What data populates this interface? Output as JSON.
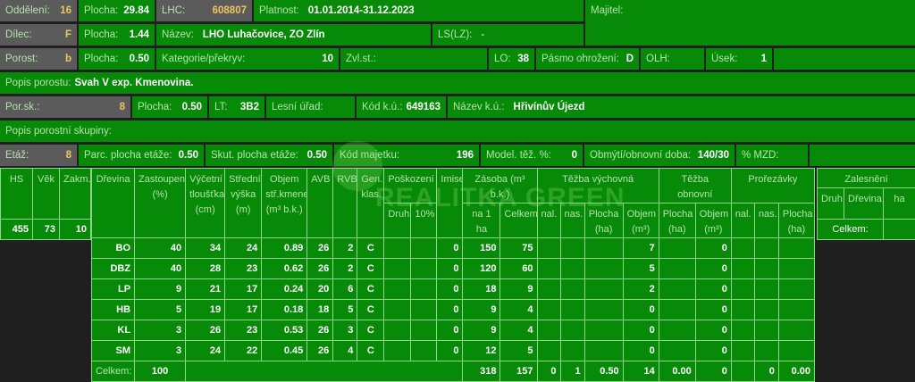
{
  "fields": {
    "oddeleni": {
      "label": "Oddělení:",
      "value": "16"
    },
    "plocha1": {
      "label": "Plocha:",
      "value": "29.84"
    },
    "lhc": {
      "label": "LHC:",
      "value": "608807"
    },
    "platnost": {
      "label": "Platnost:",
      "value": "01.01.2014-31.12.2023"
    },
    "majitel": {
      "label": "Majitel:",
      "value": ""
    },
    "dilec": {
      "label": "Dílec:",
      "value": "F"
    },
    "plocha2": {
      "label": "Plocha:",
      "value": "1.44"
    },
    "nazev": {
      "label": "Název:",
      "value": "LHO Luhačovice, ZO Zlín"
    },
    "ls": {
      "label": "LS(LZ):",
      "value": "-"
    },
    "porost": {
      "label": "Porost:",
      "value": "b"
    },
    "plocha3": {
      "label": "Plocha:",
      "value": "0.50"
    },
    "kategorie": {
      "label": "Kategorie/překryv:",
      "value": "10"
    },
    "zvlst": {
      "label": "Zvl.st.:",
      "value": ""
    },
    "lo": {
      "label": "LO:",
      "value": "38"
    },
    "pasmo": {
      "label": "Pásmo ohrožení:",
      "value": "D"
    },
    "olh": {
      "label": "OLH:",
      "value": ""
    },
    "usek": {
      "label": "Úsek:",
      "value": "1"
    },
    "popis_porostu": {
      "label": "Popis porostu:",
      "value": "Svah V exp. Kmenovina."
    },
    "porsk": {
      "label": "Por.sk.:",
      "value": "8"
    },
    "plocha4": {
      "label": "Plocha:",
      "value": "0.50"
    },
    "lt": {
      "label": "LT:",
      "value": "3B2"
    },
    "lesni_urad": {
      "label": "Lesní úřad:",
      "value": ""
    },
    "kod_ku": {
      "label": "Kód k.ú.:",
      "value": "649163"
    },
    "nazev_ku": {
      "label": "Název k.ú.:",
      "value": "Hřivínův Újezd"
    },
    "popis_skupiny": {
      "label": "Popis porostní skupiny:",
      "value": ""
    },
    "etaz": {
      "label": "Etáž:",
      "value": "8"
    },
    "parc_plocha": {
      "label": "Parc. plocha etáže:",
      "value": "0.50"
    },
    "skut_plocha": {
      "label": "Skut. plocha etáže:",
      "value": "0.50"
    },
    "kod_majetku": {
      "label": "Kód majetku:",
      "value": "196"
    },
    "model_tez": {
      "label": "Model. těž. %:",
      "value": "0"
    },
    "obmyti": {
      "label": "Obmýtí/obnovní doba:",
      "value": "140/30"
    },
    "mzd": {
      "label": "% MZD:",
      "value": ""
    }
  },
  "hs_table": {
    "headers": [
      "HS",
      "Věk",
      "Zakm."
    ],
    "values": [
      "455",
      "73",
      "10"
    ]
  },
  "main_table": {
    "header_top": [
      "Dřevina",
      "Zastoupení (%)",
      "Výčetní tloušťka (cm)",
      "Střední výška (m)",
      "Objem stř.kmene (m³ b.k.)",
      "AVB",
      "RVB",
      "Gen. klas.",
      "Poškození",
      "Imise",
      "Zásoba (m³ b.k.)",
      "Těžba výchovná",
      "Těžba obnovní",
      "Prořezávky"
    ],
    "header_sub": [
      "Druh",
      "10%",
      "na 1 ha",
      "Celkem",
      "nal.",
      "nas.",
      "Plocha (ha)",
      "Objem (m³)",
      "Plocha (ha)",
      "Objem (m³)",
      "nal.",
      "nas.",
      "Plocha (ha)"
    ],
    "rows": [
      [
        "BO",
        "40",
        "34",
        "24",
        "0.89",
        "26",
        "2",
        "C",
        "",
        "",
        "0",
        "150",
        "75",
        "",
        "",
        "",
        "7",
        "",
        "0",
        "",
        "",
        ""
      ],
      [
        "DBZ",
        "40",
        "28",
        "23",
        "0.62",
        "26",
        "2",
        "C",
        "",
        "",
        "0",
        "120",
        "60",
        "",
        "",
        "",
        "5",
        "",
        "0",
        "",
        "",
        ""
      ],
      [
        "LP",
        "9",
        "21",
        "17",
        "0.24",
        "20",
        "6",
        "C",
        "",
        "",
        "0",
        "18",
        "9",
        "",
        "",
        "",
        "2",
        "",
        "0",
        "",
        "",
        ""
      ],
      [
        "HB",
        "5",
        "19",
        "17",
        "0.18",
        "18",
        "5",
        "C",
        "",
        "",
        "0",
        "9",
        "4",
        "",
        "",
        "",
        "0",
        "",
        "0",
        "",
        "",
        ""
      ],
      [
        "KL",
        "3",
        "26",
        "23",
        "0.53",
        "26",
        "3",
        "C",
        "",
        "",
        "0",
        "9",
        "4",
        "",
        "",
        "",
        "0",
        "",
        "0",
        "",
        "",
        ""
      ],
      [
        "SM",
        "3",
        "24",
        "22",
        "0.45",
        "26",
        "4",
        "C",
        "",
        "",
        "0",
        "12",
        "5",
        "",
        "",
        "",
        "0",
        "",
        "0",
        "",
        "",
        ""
      ]
    ],
    "total": {
      "label": "Celkem:",
      "zastoupeni": "100",
      "rest": [
        "318",
        "157",
        "0",
        "1",
        "0.50",
        "14",
        "0.00",
        "0",
        "",
        "0",
        "0.00"
      ]
    }
  },
  "zalesneni": {
    "title": "Zalesnění",
    "headers": [
      "Druh",
      "Dřevina",
      "ha"
    ],
    "total_label": "Celkem:",
    "total_value": ""
  },
  "watermark": "REALITKA GREEN",
  "colors": {
    "cell": "#078a07",
    "highlight_cell": "#5b5b5b",
    "highlight_value": "#ecc65e",
    "background": "#1f1f1f"
  }
}
